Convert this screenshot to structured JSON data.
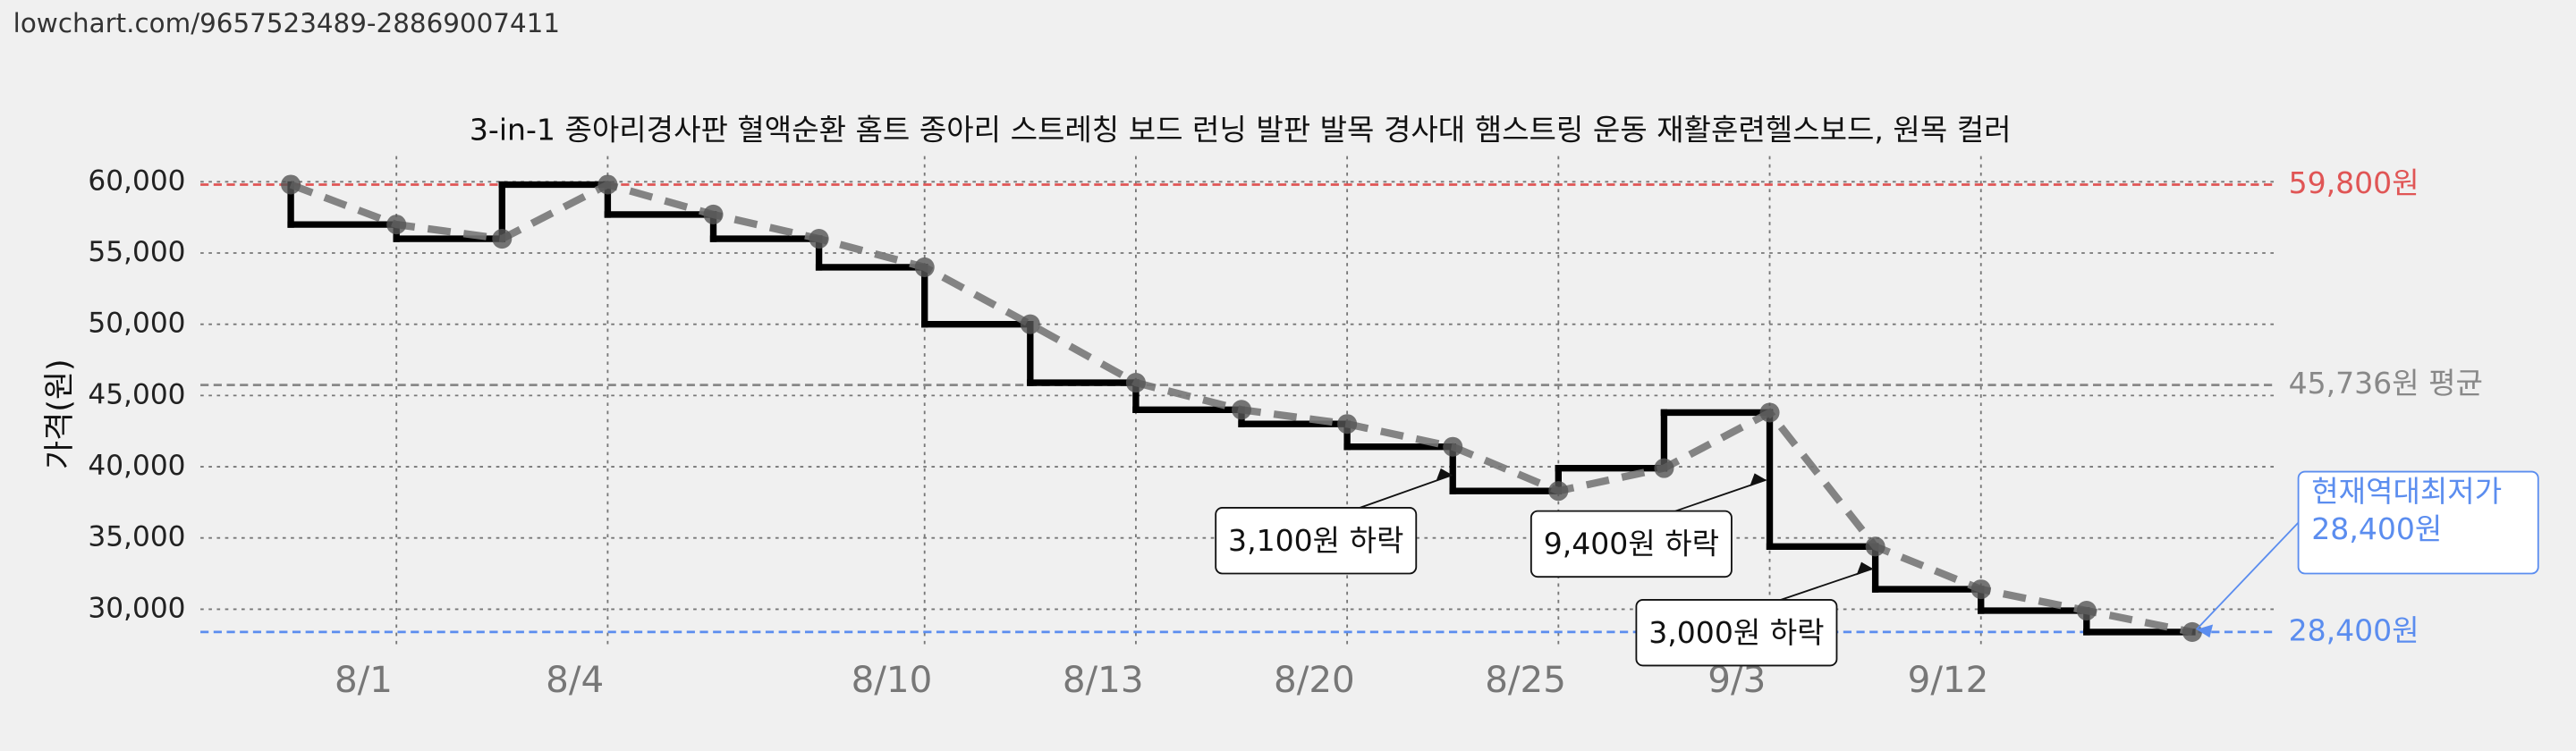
{
  "url": "lowchart.com/9657523489-28869007411",
  "chart_data": {
    "type": "line",
    "title": "3-in-1 종아리경사판 혈액순환 홈트 종아리 스트레칭 보드 런닝 발판 발목 경사대 햄스트링 운동 재활훈련헬스보드, 원목 컬러",
    "y_label": "가격(원)",
    "categories": [
      null,
      "8/1",
      null,
      "8/4",
      null,
      null,
      "8/10",
      null,
      "8/13",
      null,
      "8/20",
      null,
      "8/25",
      null,
      "9/3",
      null,
      "9/12",
      null,
      null
    ],
    "series": [
      {
        "values": [
          59800,
          57000,
          56000,
          59800,
          57700,
          56000,
          54000,
          50000,
          45900,
          44000,
          43000,
          41400,
          38300,
          39900,
          43800,
          34400,
          31400,
          29900,
          28400
        ],
        "color": "#000000",
        "trend_color": "#777777"
      }
    ],
    "ylim": [
      27200,
      61800
    ],
    "yticks": [
      {
        "value": 30000,
        "label": "30,000"
      },
      {
        "value": 35000,
        "label": "35,000"
      },
      {
        "value": 40000,
        "label": "40,000"
      },
      {
        "value": 45000,
        "label": "45,000"
      },
      {
        "value": 50000,
        "label": "50,000"
      },
      {
        "value": 55000,
        "label": "55,000"
      },
      {
        "value": 60000,
        "label": "60,000"
      }
    ],
    "grid": true,
    "reference_lines": [
      {
        "value": 59800,
        "label": "59,800원",
        "color": "#e05555"
      },
      {
        "value": 45736,
        "label": "45,736원 평균",
        "color": "#888888"
      },
      {
        "value": 28400,
        "label": "28,400원",
        "color": "#5b8def"
      }
    ],
    "annotations": [
      {
        "text": "3,100원 하락"
      },
      {
        "text": "9,400원 하락"
      },
      {
        "text": "3,000원 하락"
      },
      {
        "text": [
          "현재역대최저가",
          "28,400원"
        ],
        "color": "#5b8def"
      }
    ]
  }
}
